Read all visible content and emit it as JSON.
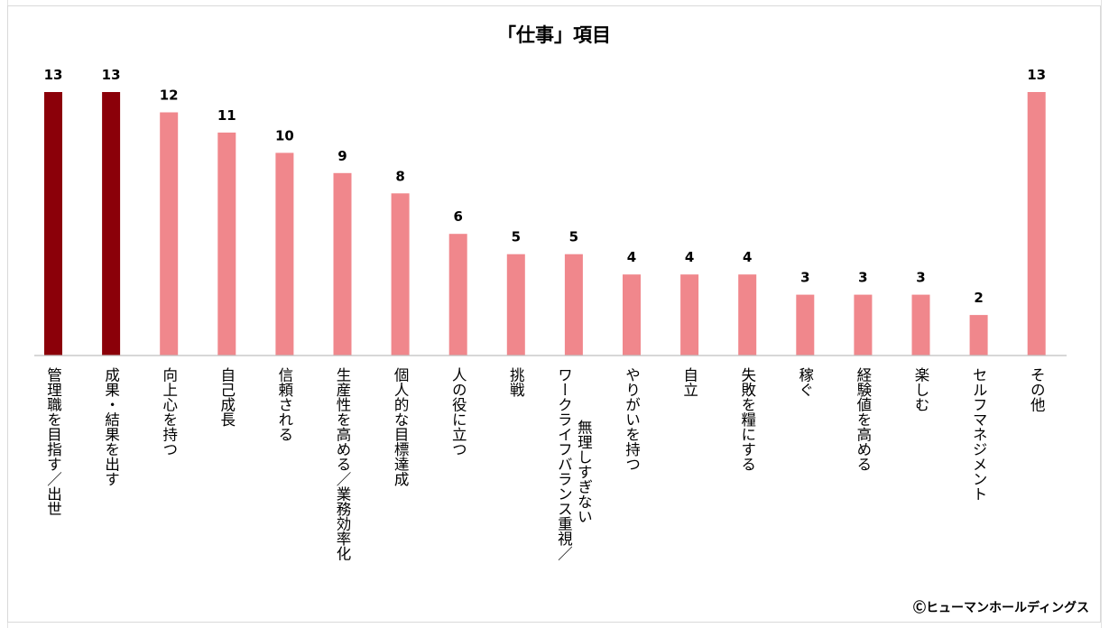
{
  "credit": "Ⓒヒューマンホールディングス",
  "colors": {
    "highlight": "#8b0009",
    "default": "#f0878c",
    "axis": "#bfbfbf"
  },
  "chart_data": {
    "type": "bar",
    "title": "「仕事」項目",
    "categories": [
      [
        "管理職を目指す／出世"
      ],
      [
        "成果・結果を出す"
      ],
      [
        "向上心を持つ"
      ],
      [
        "自己成長"
      ],
      [
        "信頼される"
      ],
      [
        "生産性を高める／業務効率化"
      ],
      [
        "個人的な目標達成"
      ],
      [
        "人の役に立つ"
      ],
      [
        "挑戦"
      ],
      [
        "ワークライフバランス重視／",
        "無理しすぎない"
      ],
      [
        "やりがいを持つ"
      ],
      [
        "自立"
      ],
      [
        "失敗を糧にする"
      ],
      [
        "稼ぐ"
      ],
      [
        "経験値を高める"
      ],
      [
        "楽しむ"
      ],
      [
        "セルフマネジメント"
      ],
      [
        "その他"
      ]
    ],
    "values": [
      13,
      13,
      12,
      11,
      10,
      9,
      8,
      6,
      5,
      5,
      4,
      4,
      4,
      3,
      3,
      3,
      2,
      13
    ],
    "highlighted": [
      0,
      1
    ],
    "ylim": [
      0,
      13
    ],
    "grid": false,
    "legend": "none"
  }
}
